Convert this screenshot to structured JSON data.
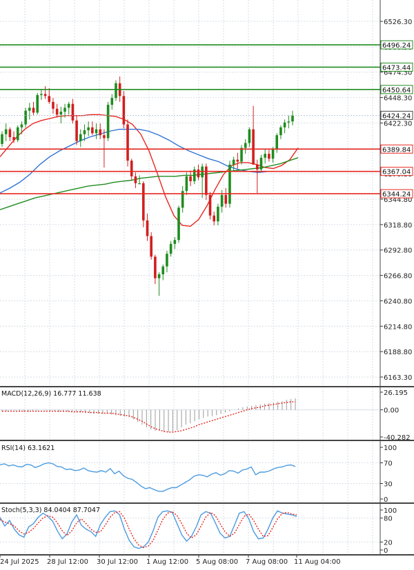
{
  "chart_data": {
    "type": "candlestick",
    "instrument_panel": {
      "y_ticks": [
        "6526.30",
        "6500.30",
        "6474.30",
        "6448.30",
        "6422.30",
        "6396.80",
        "6370.80",
        "6344.80",
        "6318.80",
        "6292.80",
        "6266.80",
        "6240.80",
        "6214.80",
        "6188.80",
        "6163.30"
      ],
      "ylim": [
        6148,
        6542
      ],
      "grid": true,
      "candles": [
        [
          6395,
          6408,
          6392,
          6405
        ],
        [
          6405,
          6416,
          6398,
          6410
        ],
        [
          6410,
          6412,
          6398,
          6402
        ],
        [
          6402,
          6408,
          6396,
          6399
        ],
        [
          6399,
          6414,
          6397,
          6412
        ],
        [
          6412,
          6418,
          6405,
          6415
        ],
        [
          6415,
          6432,
          6412,
          6429
        ],
        [
          6429,
          6437,
          6420,
          6432
        ],
        [
          6432,
          6438,
          6424,
          6427
        ],
        [
          6427,
          6447,
          6425,
          6445
        ],
        [
          6445,
          6451,
          6440,
          6446
        ],
        [
          6446,
          6454,
          6441,
          6444
        ],
        [
          6444,
          6452,
          6436,
          6438
        ],
        [
          6438,
          6442,
          6426,
          6431
        ],
        [
          6431,
          6436,
          6422,
          6425
        ],
        [
          6425,
          6433,
          6416,
          6428
        ],
        [
          6428,
          6436,
          6422,
          6432
        ],
        [
          6432,
          6438,
          6425,
          6436
        ],
        [
          6436,
          6441,
          6416,
          6419
        ],
        [
          6419,
          6424,
          6394,
          6398
        ],
        [
          6398,
          6410,
          6392,
          6405
        ],
        [
          6405,
          6415,
          6398,
          6409
        ],
        [
          6409,
          6418,
          6403,
          6412
        ],
        [
          6412,
          6418,
          6404,
          6406
        ],
        [
          6406,
          6416,
          6400,
          6410
        ],
        [
          6410,
          6416,
          6400,
          6404
        ],
        [
          6404,
          6410,
          6371,
          6401
        ],
        [
          6401,
          6438,
          6398,
          6435
        ],
        [
          6435,
          6446,
          6430,
          6442
        ],
        [
          6442,
          6460,
          6439,
          6457
        ],
        [
          6457,
          6464,
          6438,
          6444
        ],
        [
          6444,
          6449,
          6411,
          6415
        ],
        [
          6415,
          6420,
          6372,
          6378
        ],
        [
          6378,
          6380,
          6358,
          6362
        ],
        [
          6362,
          6366,
          6350,
          6355
        ],
        [
          6355,
          6363,
          6355,
          6355
        ],
        [
          6355,
          6357,
          6310,
          6317
        ],
        [
          6317,
          6324,
          6296,
          6301
        ],
        [
          6301,
          6305,
          6277,
          6280
        ],
        [
          6280,
          6282,
          6252,
          6258
        ],
        [
          6258,
          6264,
          6240,
          6262
        ],
        [
          6262,
          6272,
          6256,
          6270
        ],
        [
          6270,
          6286,
          6264,
          6283
        ],
        [
          6283,
          6296,
          6280,
          6293
        ],
        [
          6293,
          6300,
          6288,
          6297
        ],
        [
          6297,
          6332,
          6294,
          6330
        ],
        [
          6330,
          6352,
          6325,
          6347
        ],
        [
          6347,
          6366,
          6343,
          6362
        ],
        [
          6362,
          6368,
          6352,
          6357
        ],
        [
          6357,
          6372,
          6354,
          6369
        ],
        [
          6369,
          6374,
          6358,
          6361
        ],
        [
          6361,
          6375,
          6340,
          6372
        ],
        [
          6372,
          6375,
          6338,
          6343
        ],
        [
          6343,
          6346,
          6318,
          6322
        ],
        [
          6322,
          6326,
          6312,
          6316
        ],
        [
          6316,
          6334,
          6312,
          6331
        ],
        [
          6331,
          6348,
          6325,
          6343
        ],
        [
          6343,
          6350,
          6330,
          6334
        ],
        [
          6334,
          6378,
          6330,
          6374
        ],
        [
          6374,
          6382,
          6368,
          6379
        ],
        [
          6379,
          6386,
          6370,
          6377
        ],
        [
          6377,
          6394,
          6374,
          6391
        ],
        [
          6391,
          6400,
          6385,
          6396
        ],
        [
          6396,
          6412,
          6392,
          6410
        ],
        [
          6410,
          6434,
          6374,
          6374
        ],
        [
          6374,
          6379,
          6345,
          6369
        ],
        [
          6369,
          6384,
          6366,
          6381
        ],
        [
          6381,
          6390,
          6375,
          6385
        ],
        [
          6385,
          6389,
          6377,
          6380
        ],
        [
          6380,
          6392,
          6376,
          6390
        ],
        [
          6390,
          6406,
          6386,
          6404
        ],
        [
          6404,
          6414,
          6400,
          6412
        ],
        [
          6412,
          6420,
          6406,
          6417
        ],
        [
          6417,
          6424,
          6411,
          6418
        ],
        [
          6418,
          6429,
          6414,
          6424
        ]
      ],
      "moving_averages": [
        {
          "color": "#e8261f",
          "values": [
            6382,
            6392,
            6402,
            6410,
            6416,
            6419,
            6421,
            6423,
            6424,
            6424,
            6424,
            6425,
            6425,
            6424,
            6423,
            6420,
            6415,
            6405,
            6388,
            6365,
            6341,
            6322,
            6312,
            6311,
            6318,
            6332,
            6349,
            6364,
            6373,
            6376,
            6376,
            6374,
            6371,
            6370,
            6373,
            6379,
            6391
          ]
        },
        {
          "color": "#2f73d6",
          "values": [
            6345,
            6350,
            6356,
            6364,
            6374,
            6382,
            6388,
            6393,
            6398,
            6402,
            6405,
            6408,
            6410,
            6410,
            6410,
            6408,
            6404,
            6399,
            6393,
            6388,
            6384,
            6380,
            6377,
            6372,
            6369,
            6367,
            6366,
            6367,
            6367,
            6367,
            6367
          ]
        },
        {
          "color": "#1f8c1f",
          "values": [
            6328,
            6331,
            6334,
            6337,
            6340,
            6342,
            6344,
            6346,
            6348,
            6350,
            6352,
            6353,
            6354,
            6356,
            6357,
            6358,
            6360,
            6361,
            6362,
            6362,
            6362,
            6363,
            6363,
            6364,
            6365,
            6366,
            6367,
            6368,
            6369,
            6370,
            6371,
            6373,
            6375,
            6378,
            6381
          ]
        }
      ],
      "horizontal_lines": [
        {
          "value": 6496.24,
          "label": "6496.24",
          "color": "#1f8c1f"
        },
        {
          "value": 6473.44,
          "label": "6473.44",
          "color": "#1f8c1f"
        },
        {
          "value": 6450.64,
          "label": "6450.64",
          "color": "#1f8c1f"
        },
        {
          "value": 6389.84,
          "label": "6389.84",
          "color": "#e8261f"
        },
        {
          "value": 6367.04,
          "label": "6367.04",
          "color": "#e8261f"
        },
        {
          "value": 6344.24,
          "label": "6344.24",
          "color": "#e8261f"
        }
      ],
      "current_price": {
        "value": 6424.24,
        "label": "6424.24"
      },
      "colors": {
        "up": "#1f8c1f",
        "down": "#d11f1f",
        "grid": "#d6dde6"
      }
    },
    "macd_panel": {
      "title": "MACD(12,26,9) 16.777 11.638",
      "y_ticks": [
        "26.195",
        "0.00",
        "-40.282"
      ],
      "ylim": [
        -40.282,
        26.195
      ],
      "histogram": [
        -3,
        -2,
        -1,
        -1,
        -2,
        -3,
        -3,
        -2,
        -1,
        0,
        -1,
        -2,
        -2,
        -3,
        -3,
        -3,
        -3,
        -3,
        -4,
        -5,
        -5,
        -6,
        -6,
        -6,
        -6,
        -7,
        -8,
        -9,
        -10,
        -11,
        -14,
        -18,
        -22,
        -26,
        -29,
        -31,
        -31,
        -33,
        -33,
        -32,
        -30,
        -26,
        -22,
        -20,
        -17,
        -14,
        -12,
        -10,
        -9,
        -8,
        -6,
        -4,
        -2,
        0,
        2,
        4,
        5,
        6,
        7,
        8,
        9,
        10,
        11,
        12,
        13,
        15,
        16,
        17
      ],
      "signal": [
        -2,
        -2,
        -2,
        -2,
        -2,
        -2,
        -2,
        -2,
        -2,
        -2,
        -2,
        -2,
        -2,
        -2,
        -2,
        -2,
        -3,
        -3,
        -3,
        -3,
        -4,
        -4,
        -4,
        -5,
        -5,
        -5,
        -6,
        -7,
        -8,
        -9,
        -11,
        -14,
        -17,
        -21,
        -25,
        -28,
        -30,
        -32,
        -33,
        -33,
        -32,
        -31,
        -29,
        -27,
        -25,
        -22,
        -20,
        -18,
        -16,
        -14,
        -12,
        -10,
        -8,
        -6,
        -4,
        -2,
        0,
        2,
        3,
        4,
        6,
        7,
        8,
        9,
        10,
        11,
        12,
        12
      ],
      "colors": {
        "histogram": "#9a9a9a",
        "signal": "#e8261f"
      }
    },
    "rsi_panel": {
      "title": "RSI(14) 63.1621",
      "y_ticks": [
        "100",
        "70",
        "30",
        "0"
      ],
      "ylim": [
        0,
        100
      ],
      "values": [
        66,
        68,
        64,
        66,
        63,
        62,
        67,
        66,
        61,
        64,
        68,
        70,
        68,
        63,
        62,
        57,
        58,
        55,
        56,
        60,
        55,
        53,
        52,
        55,
        52,
        59,
        49,
        54,
        45,
        40,
        38,
        32,
        25,
        20,
        22,
        18,
        15,
        15,
        19,
        22,
        22,
        27,
        32,
        37,
        44,
        47,
        46,
        43,
        48,
        51,
        46,
        49,
        55,
        54,
        50,
        56,
        58,
        62,
        47,
        52,
        52,
        54,
        58,
        61,
        62,
        65,
        66,
        63
      ],
      "color": "#4a9ae0"
    },
    "stoch_panel": {
      "title": "Stoch(5,3,3) 84.0404 87.7047",
      "y_ticks": [
        "100",
        "80",
        "20",
        "0"
      ],
      "ylim": [
        0,
        100
      ],
      "k": [
        82,
        60,
        74,
        52,
        38,
        32,
        58,
        66,
        82,
        92,
        84,
        72,
        48,
        28,
        40,
        70,
        88,
        62,
        52,
        46,
        34,
        64,
        82,
        96,
        98,
        88,
        52,
        24,
        8,
        4,
        8,
        20,
        48,
        82,
        96,
        98,
        94,
        66,
        38,
        22,
        34,
        58,
        88,
        96,
        92,
        68,
        42,
        30,
        34,
        62,
        92,
        96,
        78,
        46,
        28,
        30,
        52,
        80,
        98,
        92,
        90,
        88,
        84
      ],
      "d": [
        76,
        70,
        66,
        60,
        48,
        40,
        44,
        54,
        68,
        80,
        86,
        82,
        68,
        48,
        36,
        48,
        68,
        78,
        66,
        52,
        44,
        46,
        62,
        82,
        94,
        96,
        80,
        52,
        28,
        12,
        6,
        10,
        24,
        50,
        76,
        92,
        96,
        86,
        66,
        42,
        30,
        38,
        60,
        82,
        94,
        86,
        66,
        46,
        34,
        42,
        64,
        84,
        90,
        74,
        52,
        34,
        36,
        56,
        78,
        92,
        94,
        90,
        88
      ],
      "colors": {
        "k": "#4a9ae0",
        "d": "#e8261f"
      }
    },
    "x_ticks": [
      "24 Jul 2025",
      "28 Jul 12:00",
      "30 Jul 12:00",
      "1 Aug 12:00",
      "5 Aug 08:00",
      "7 Aug 08:00",
      "11 Aug 04:00"
    ]
  }
}
